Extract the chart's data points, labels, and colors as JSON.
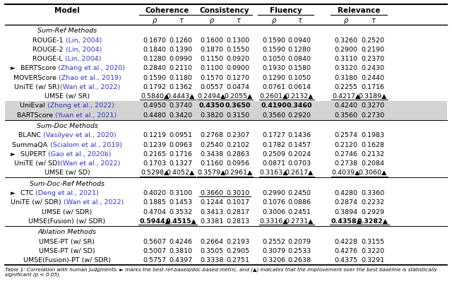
{
  "header_groups": [
    "Coherence",
    "Consistency",
    "Fluency",
    "Relevance"
  ],
  "subheaders": [
    "ρ",
    "τ",
    "ρ",
    "τ",
    "ρ",
    "τ",
    "ρ",
    "τ"
  ],
  "sections": [
    {
      "section_title": "Sum-Ref Methods",
      "rows": [
        {
          "model": "ROUGE-1 (Lin, 2004)",
          "arrow": false,
          "values": [
            "0.1670",
            "0.1260",
            "0.1600",
            "0.1300",
            "0.1590",
            "0.0940",
            "0.3260",
            "0.2520"
          ],
          "bold": [
            false,
            false,
            false,
            false,
            false,
            false,
            false,
            false
          ],
          "underline": [
            false,
            false,
            false,
            false,
            false,
            false,
            false,
            false
          ],
          "highlight": false,
          "val_suffix": [
            "",
            "",
            "",
            "",
            "",
            "",
            "",
            ""
          ]
        },
        {
          "model": "ROUGE-2 (Lin, 2004)",
          "arrow": false,
          "values": [
            "0.1840",
            "0.1390",
            "0.1870",
            "0.1550",
            "0.1590",
            "0.1280",
            "0.2900",
            "0.2190"
          ],
          "bold": [
            false,
            false,
            false,
            false,
            false,
            false,
            false,
            false
          ],
          "underline": [
            false,
            false,
            false,
            false,
            false,
            false,
            false,
            false
          ],
          "highlight": false,
          "val_suffix": [
            "",
            "",
            "",
            "",
            "",
            "",
            "",
            ""
          ]
        },
        {
          "model": "ROUGE-L (Lin, 2004)",
          "arrow": false,
          "values": [
            "0.1280",
            "0.0990",
            "0.1150",
            "0.0920",
            "0.1050",
            "0.0840",
            "0.3110",
            "0.2370"
          ],
          "bold": [
            false,
            false,
            false,
            false,
            false,
            false,
            false,
            false
          ],
          "underline": [
            false,
            false,
            false,
            false,
            false,
            false,
            false,
            false
          ],
          "highlight": false,
          "val_suffix": [
            "",
            "",
            "",
            "",
            "",
            "",
            "",
            ""
          ]
        },
        {
          "model": "BERTScore (Zhang et al., 2020)",
          "arrow": true,
          "values": [
            "0.2840",
            "0.2110",
            "0.1100",
            "0.0900",
            "0.1930",
            "0.1580",
            "0.3120",
            "0.2430"
          ],
          "bold": [
            false,
            false,
            false,
            false,
            false,
            false,
            false,
            false
          ],
          "underline": [
            false,
            false,
            false,
            false,
            false,
            false,
            false,
            false
          ],
          "highlight": false,
          "val_suffix": [
            "",
            "",
            "",
            "",
            "",
            "",
            "",
            ""
          ]
        },
        {
          "model": "MOVERScore (Zhao et al., 2019)",
          "arrow": false,
          "values": [
            "0.1590",
            "0.1180",
            "0.1570",
            "0.1270",
            "0.1290",
            "0.1050",
            "0.3180",
            "0.2440"
          ],
          "bold": [
            false,
            false,
            false,
            false,
            false,
            false,
            false,
            false
          ],
          "underline": [
            false,
            false,
            false,
            false,
            false,
            false,
            false,
            false
          ],
          "highlight": false,
          "val_suffix": [
            "",
            "",
            "",
            "",
            "",
            "",
            "",
            ""
          ]
        },
        {
          "model": "UniTE (w/ SR)(Wan et al., 2022)",
          "arrow": false,
          "values": [
            "0.1792",
            "0.1362",
            "0.0557",
            "0.0474",
            "0.0761",
            "0.0614",
            "0.2255",
            "0.1716"
          ],
          "bold": [
            false,
            false,
            false,
            false,
            false,
            false,
            false,
            false
          ],
          "underline": [
            false,
            false,
            false,
            false,
            false,
            false,
            false,
            false
          ],
          "highlight": false,
          "val_suffix": [
            "",
            "",
            "",
            "",
            "",
            "",
            "",
            ""
          ]
        },
        {
          "model": "UMSE (w/ SR)",
          "arrow": false,
          "values": [
            "0.5840",
            "0.4443",
            "0.2494",
            "0.2055",
            "0.2601",
            "0.2132",
            "0.4217",
            "0.3189"
          ],
          "bold": [
            false,
            false,
            false,
            false,
            false,
            false,
            false,
            false
          ],
          "underline": [
            true,
            true,
            true,
            true,
            true,
            true,
            true,
            true
          ],
          "highlight": false,
          "val_suffix": [
            "▲",
            "▲",
            "▲",
            "▲",
            "▲",
            "▲",
            "▲",
            "▲"
          ]
        },
        {
          "model": "UniEval (Zhong et al., 2022)",
          "arrow": false,
          "values": [
            "0.4950",
            "0.3740",
            "0.4350",
            "0.3650",
            "0.4190",
            "0.3460",
            "0.4240",
            "0.3270"
          ],
          "bold": [
            false,
            false,
            true,
            true,
            true,
            true,
            false,
            false
          ],
          "underline": [
            false,
            false,
            false,
            false,
            false,
            false,
            false,
            false
          ],
          "highlight": true,
          "val_suffix": [
            "",
            "",
            "",
            "",
            "",
            "",
            "",
            ""
          ]
        },
        {
          "model": "BARTScore (Yuan et al., 2021)",
          "arrow": false,
          "values": [
            "0.4480",
            "0.3420",
            "0.3820",
            "0.3150",
            "0.3560",
            "0.2920",
            "0.3560",
            "0.2730"
          ],
          "bold": [
            false,
            false,
            false,
            false,
            false,
            false,
            false,
            false
          ],
          "underline": [
            false,
            false,
            false,
            false,
            false,
            false,
            false,
            false
          ],
          "highlight": true,
          "val_suffix": [
            "",
            "",
            "",
            "",
            "",
            "",
            "",
            ""
          ]
        }
      ]
    },
    {
      "section_title": "Sum-Doc Methods",
      "rows": [
        {
          "model": "BLANC (Vasilyev et al., 2020)",
          "arrow": false,
          "values": [
            "0.1219",
            "0.0951",
            "0.2768",
            "0.2307",
            "0.1727",
            "0.1436",
            "0.2574",
            "0.1983"
          ],
          "bold": [
            false,
            false,
            false,
            false,
            false,
            false,
            false,
            false
          ],
          "underline": [
            false,
            false,
            false,
            false,
            false,
            false,
            false,
            false
          ],
          "highlight": false,
          "val_suffix": [
            "",
            "",
            "",
            "",
            "",
            "",
            "",
            ""
          ]
        },
        {
          "model": "SummaQA (Scialom et al., 2019)",
          "arrow": false,
          "values": [
            "0.1239",
            "0.0963",
            "0.2540",
            "0.2102",
            "0.1782",
            "0.1457",
            "0.2120",
            "0.1628"
          ],
          "bold": [
            false,
            false,
            false,
            false,
            false,
            false,
            false,
            false
          ],
          "underline": [
            false,
            false,
            false,
            false,
            false,
            false,
            false,
            false
          ],
          "highlight": false,
          "val_suffix": [
            "",
            "",
            "",
            "",
            "",
            "",
            "",
            ""
          ]
        },
        {
          "model": "SUPERT (Gao et al., 2020b)",
          "arrow": true,
          "values": [
            "0.2165",
            "0.1716",
            "0.3438",
            "0.2863",
            "0.2509",
            "0.2024",
            "0.2746",
            "0.2132"
          ],
          "bold": [
            false,
            false,
            false,
            false,
            false,
            false,
            false,
            false
          ],
          "underline": [
            false,
            false,
            false,
            false,
            false,
            false,
            false,
            false
          ],
          "highlight": false,
          "val_suffix": [
            "",
            "",
            "",
            "",
            "",
            "",
            "",
            ""
          ]
        },
        {
          "model": "UniTE (w/ SD)(Wan et al., 2022)",
          "arrow": false,
          "values": [
            "0.1703",
            "0.1327",
            "0.1160",
            "0.0956",
            "0.0871",
            "0.0703",
            "0.2738",
            "0.2084"
          ],
          "bold": [
            false,
            false,
            false,
            false,
            false,
            false,
            false,
            false
          ],
          "underline": [
            false,
            false,
            false,
            false,
            false,
            false,
            false,
            false
          ],
          "highlight": false,
          "val_suffix": [
            "",
            "",
            "",
            "",
            "",
            "",
            "",
            ""
          ]
        },
        {
          "model": "UMSE (w/ SD)",
          "arrow": false,
          "values": [
            "0.5298",
            "0.4052",
            "0.3579",
            "0.2961",
            "0.3163",
            "0.2617",
            "0.4039",
            "0.3060"
          ],
          "bold": [
            false,
            false,
            false,
            false,
            false,
            false,
            false,
            false
          ],
          "underline": [
            true,
            true,
            true,
            true,
            true,
            true,
            true,
            true
          ],
          "highlight": false,
          "val_suffix": [
            "▲",
            "▲",
            "▲",
            "▲",
            "▲",
            "▲",
            "▲",
            "▲"
          ]
        }
      ]
    },
    {
      "section_title": "Sum-Doc-Ref Methods",
      "rows": [
        {
          "model": "CTC (Deng et al., 2021)",
          "arrow": true,
          "values": [
            "0.4020",
            "0.3100",
            "0.3660",
            "0.3010",
            "0.2990",
            "0.2450",
            "0.4280",
            "0.3360"
          ],
          "bold": [
            false,
            false,
            false,
            false,
            false,
            false,
            false,
            false
          ],
          "underline": [
            false,
            false,
            true,
            true,
            false,
            false,
            false,
            false
          ],
          "highlight": false,
          "val_suffix": [
            "",
            "",
            "",
            "",
            "",
            "",
            "",
            ""
          ]
        },
        {
          "model": "UniTE (w/ SDR) (Wan et al., 2022)",
          "arrow": false,
          "values": [
            "0.1885",
            "0.1453",
            "0.1244",
            "0.1017",
            "0.1076",
            "0.0886",
            "0.2874",
            "0.2232"
          ],
          "bold": [
            false,
            false,
            false,
            false,
            false,
            false,
            false,
            false
          ],
          "underline": [
            false,
            false,
            false,
            false,
            false,
            false,
            false,
            false
          ],
          "highlight": false,
          "val_suffix": [
            "",
            "",
            "",
            "",
            "",
            "",
            "",
            ""
          ]
        },
        {
          "model": "UMSE (w/ SDR)",
          "arrow": false,
          "values": [
            "0.4704",
            "0.3532",
            "0.3413",
            "0.2817",
            "0.3006",
            "0.2451",
            "0.3894",
            "0.2929"
          ],
          "bold": [
            false,
            false,
            false,
            false,
            false,
            false,
            false,
            false
          ],
          "underline": [
            false,
            false,
            false,
            false,
            false,
            false,
            false,
            false
          ],
          "highlight": false,
          "val_suffix": [
            "",
            "",
            "",
            "",
            "",
            "",
            "",
            ""
          ]
        },
        {
          "model": "UMSE(Fusion) (w/ SDR)",
          "arrow": false,
          "values": [
            "0.5944",
            "0.4515",
            "0.3381",
            "0.2813",
            "0.3316",
            "0.2731",
            "0.4358",
            "0.3282"
          ],
          "bold": [
            true,
            true,
            false,
            false,
            false,
            false,
            true,
            true
          ],
          "underline": [
            true,
            true,
            false,
            false,
            true,
            true,
            true,
            true
          ],
          "highlight": false,
          "val_suffix": [
            "▲",
            "▲",
            "",
            "",
            "▲",
            "▲",
            "▲",
            "▲"
          ]
        }
      ]
    },
    {
      "section_title": "Ablation Methods",
      "rows": [
        {
          "model": "UMSE-PT (w/ SR)",
          "arrow": false,
          "values": [
            "0.5607",
            "0.4246",
            "0.2664",
            "0.2193",
            "0.2552",
            "0.2079",
            "0.4228",
            "0.3155"
          ],
          "bold": [
            false,
            false,
            false,
            false,
            false,
            false,
            false,
            false
          ],
          "underline": [
            false,
            false,
            false,
            false,
            false,
            false,
            false,
            false
          ],
          "highlight": false,
          "val_suffix": [
            "",
            "",
            "",
            "",
            "",
            "",
            "",
            ""
          ]
        },
        {
          "model": "UMSE-PT (w/ SD)",
          "arrow": false,
          "values": [
            "0.5007",
            "0.3810",
            "0.3505",
            "0.2905",
            "0.3079",
            "0.2533",
            "0.4276",
            "0.3220"
          ],
          "bold": [
            false,
            false,
            false,
            false,
            false,
            false,
            false,
            false
          ],
          "underline": [
            false,
            false,
            false,
            false,
            false,
            false,
            false,
            false
          ],
          "highlight": false,
          "val_suffix": [
            "",
            "",
            "",
            "",
            "",
            "",
            "",
            ""
          ]
        },
        {
          "model": "UMSE(Fusion)-PT (w/ SDR)",
          "arrow": false,
          "values": [
            "0.5757",
            "0.4397",
            "0.3338",
            "0.2751",
            "0.3206",
            "0.2638",
            "0.4375",
            "0.3291"
          ],
          "bold": [
            false,
            false,
            false,
            false,
            false,
            false,
            false,
            false
          ],
          "underline": [
            false,
            false,
            false,
            false,
            false,
            false,
            false,
            false
          ],
          "highlight": false,
          "val_suffix": [
            "",
            "",
            "",
            "",
            "",
            "",
            "",
            ""
          ]
        }
      ]
    }
  ],
  "bg_color": "#ffffff",
  "highlight_color": "#d3d3d3",
  "citation_color": "#3333cc",
  "caption": "Table 1: Correlation with human judgments. ► marks the best ref-based/doc-based metric, and (▲) indicates that the improvement over the best baseline is statistically significant (p < 0.05)."
}
